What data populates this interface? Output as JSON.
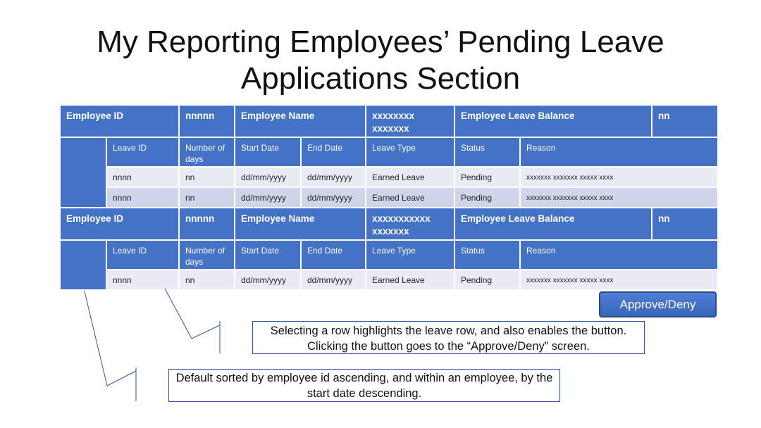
{
  "title": {
    "line1": "My Reporting Employees’ Pending Leave",
    "line2": "Applications Section"
  },
  "employees": [
    {
      "id_label": "Employee ID",
      "id_value": "nnnnn",
      "name_label": "Employee Name",
      "name_value": "xxxxxxxx xxxxxxx",
      "balance_label": "Employee Leave Balance",
      "balance_value": "nn",
      "columns": [
        "Leave ID",
        "Number of days",
        "Start Date",
        "End Date",
        "Leave Type",
        "Status",
        "Reason"
      ],
      "rows": [
        [
          "nnnn",
          "nn",
          "dd/mm/yyyy",
          "dd/mm/yyyy",
          "Earned Leave",
          "Pending",
          "xxxxxxx xxxxxxx xxxxx xxxx"
        ],
        [
          "nnnn",
          "nn",
          "dd/mm/yyyy",
          "dd/mm/yyyy",
          "Earned Leave",
          "Pending",
          "xxxxxxx xxxxxxx xxxxx xxxx"
        ]
      ]
    },
    {
      "id_label": "Employee ID",
      "id_value": "nnnnn",
      "name_label": "Employee Name",
      "name_value": "xxxxxxxxxxx xxxxxxx",
      "balance_label": "Employee Leave Balance",
      "balance_value": "nn",
      "columns": [
        "Leave ID",
        "Number of days",
        "Start Date",
        "End Date",
        "Leave Type",
        "Status",
        "Reason"
      ],
      "rows": [
        [
          "nnnn",
          "nn",
          "dd/mm/yyyy",
          "dd/mm/yyyy",
          "Earned Leave",
          "Pending",
          "xxxxxxx xxxxxxx xxxxx xxxx"
        ]
      ]
    }
  ],
  "approve_button": "Approve/Deny",
  "notes": {
    "selection": "Selecting a row highlights the leave row, and also enables the button. Clicking the button goes to the “Approve/Deny” screen.",
    "sorting": "Default sorted by employee id ascending, and within an employee, by the start date descending."
  },
  "colors": {
    "header_blue": "#4472c4",
    "row_light": "#e9ebf5",
    "row_dark": "#cfd5ea",
    "note_border": "#2f5597"
  }
}
